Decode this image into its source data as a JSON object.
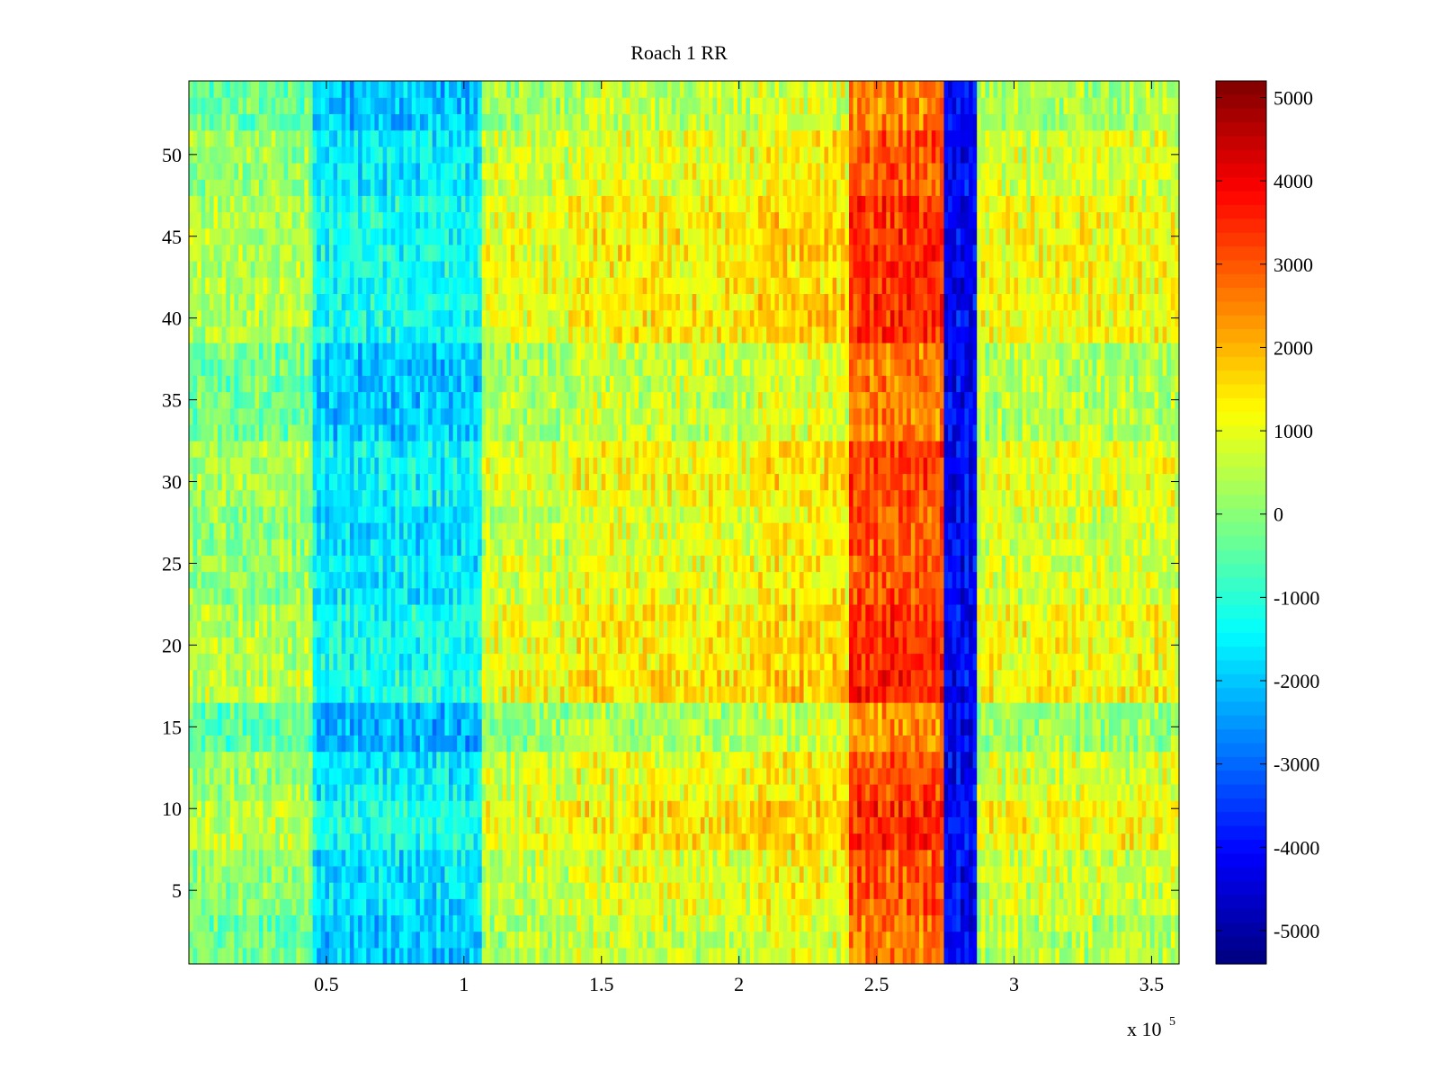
{
  "chart_data": {
    "type": "heatmap",
    "title": "Roach 1 RR",
    "xlabel": "",
    "ylabel": "",
    "x_exponent_label": "x 10",
    "x_exponent_power": "5",
    "xlim": [
      0,
      3.6
    ],
    "ylim": [
      0.5,
      54.5
    ],
    "rows": 54,
    "x_ticks": [
      0.5,
      1,
      1.5,
      2,
      2.5,
      3,
      3.5
    ],
    "x_tick_labels": [
      "0.5",
      "1",
      "1.5",
      "2",
      "2.5",
      "3",
      "3.5"
    ],
    "y_ticks": [
      5,
      10,
      15,
      20,
      25,
      30,
      35,
      40,
      45,
      50
    ],
    "y_tick_labels": [
      "5",
      "10",
      "15",
      "20",
      "25",
      "30",
      "35",
      "40",
      "45",
      "50"
    ],
    "colorbar": {
      "colormap": "jet",
      "clim": [
        -5400,
        5200
      ],
      "ticks": [
        5000,
        4000,
        3000,
        2000,
        1000,
        0,
        -1000,
        -2000,
        -3000,
        -4000,
        -5000
      ],
      "tick_labels": [
        "5000",
        "4000",
        "3000",
        "2000",
        "1000",
        "0",
        "-1000",
        "-2000",
        "-3000",
        "-4000",
        "-5000"
      ]
    },
    "segments": [
      {
        "x": [
          0.0,
          0.45
        ],
        "base": -300
      },
      {
        "x": [
          0.45,
          1.07
        ],
        "base": -2000
      },
      {
        "x": [
          1.07,
          1.4
        ],
        "base": 300
      },
      {
        "x": [
          1.4,
          2.07
        ],
        "base": 600
      },
      {
        "x": [
          2.07,
          2.4
        ],
        "base": 900
      },
      {
        "x": [
          2.4,
          2.75
        ],
        "base": 2600
      },
      {
        "x": [
          2.75,
          2.87
        ],
        "base": -4300
      },
      {
        "x": [
          2.87,
          3.6
        ],
        "base": 400
      }
    ],
    "row_profile": [
      {
        "rows": [
          1,
          3
        ],
        "offset": -200
      },
      {
        "rows": [
          4,
          7
        ],
        "offset": 200
      },
      {
        "rows": [
          8,
          10
        ],
        "offset": 800
      },
      {
        "rows": [
          11,
          13
        ],
        "offset": 300
      },
      {
        "rows": [
          14,
          16
        ],
        "offset": -500
      },
      {
        "rows": [
          17,
          18
        ],
        "offset": 900
      },
      {
        "rows": [
          19,
          22
        ],
        "offset": 700
      },
      {
        "rows": [
          23,
          25
        ],
        "offset": 300
      },
      {
        "rows": [
          26,
          28
        ],
        "offset": 200
      },
      {
        "rows": [
          29,
          32
        ],
        "offset": 500
      },
      {
        "rows": [
          33,
          38
        ],
        "offset": -200
      },
      {
        "rows": [
          39,
          47
        ],
        "offset": 700
      },
      {
        "rows": [
          48,
          51
        ],
        "offset": 300
      },
      {
        "rows": [
          52,
          54
        ],
        "offset": -300
      }
    ]
  }
}
